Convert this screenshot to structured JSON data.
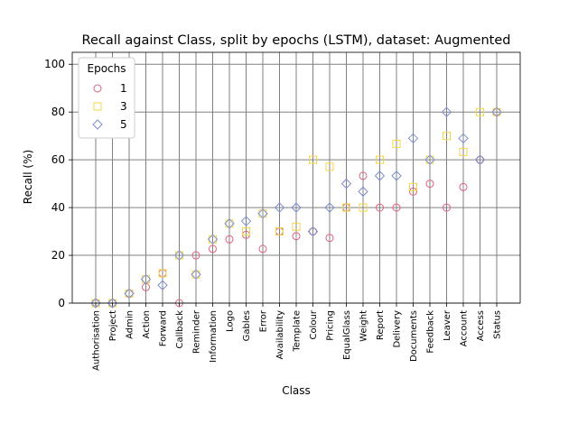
{
  "chart_data": {
    "type": "scatter",
    "title": "Recall against Class, split by epochs (LSTM), dataset: Augmented",
    "xlabel": "Class",
    "ylabel": "Recall (%)",
    "ylim": [
      0,
      105
    ],
    "yticks": [
      "0",
      "20",
      "40",
      "60",
      "80",
      "100"
    ],
    "grid": true,
    "legend": {
      "title": "Epochs",
      "position": "top-left"
    },
    "categories": [
      "Authorisation",
      "Project",
      "Admin",
      "Action",
      "Forward",
      "Callback",
      "Reminder",
      "Information",
      "Logo",
      "Gables",
      "Error",
      "Availability",
      "Template",
      "Colour",
      "Pricing",
      "EqualGlass",
      "Weight",
      "Report",
      "Delivery",
      "Documents",
      "Feedback",
      "Leaver",
      "Account",
      "Access",
      "Status"
    ],
    "series": [
      {
        "name": "1",
        "marker": "circle",
        "color": "#e0607e",
        "values": [
          0,
          0,
          4,
          6.7,
          12.5,
          0,
          20,
          22.7,
          26.7,
          28.6,
          22.7,
          30,
          28,
          30,
          27.3,
          40,
          53.3,
          40,
          40,
          46.7,
          50,
          40,
          48.6,
          60,
          80
        ]
      },
      {
        "name": "3",
        "marker": "square",
        "color": "#f5d547",
        "values": [
          0,
          0,
          4,
          10,
          12.5,
          20,
          12,
          26.7,
          33.3,
          30,
          37.5,
          30,
          32,
          60,
          57.1,
          40,
          40,
          60,
          66.7,
          48.6,
          60,
          70,
          63.3,
          80,
          80
        ]
      },
      {
        "name": "5",
        "marker": "diamond",
        "color": "#7b8fd1",
        "values": [
          0,
          0,
          4,
          10,
          7.5,
          20,
          12,
          26.7,
          33.3,
          34.3,
          37.5,
          40,
          40,
          30,
          40,
          50,
          46.7,
          53.3,
          53.3,
          69,
          60,
          80,
          69,
          60,
          80
        ]
      }
    ]
  }
}
